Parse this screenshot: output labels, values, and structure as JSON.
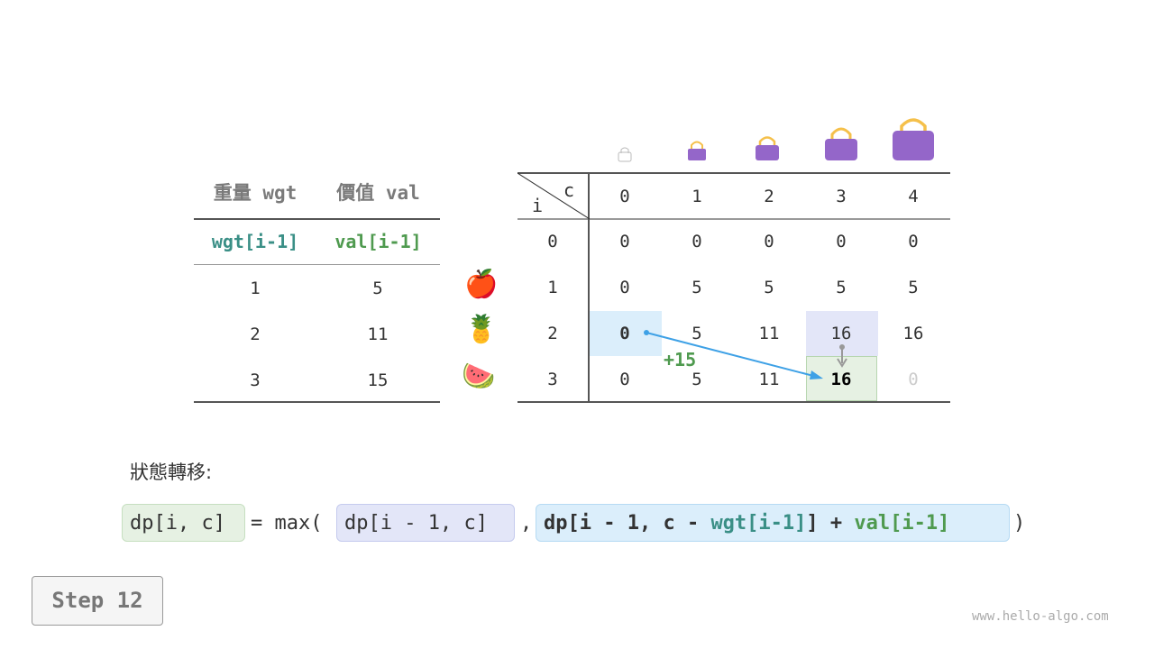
{
  "left_table": {
    "headers": [
      "重量 wgt",
      "價值 val"
    ],
    "subheaders": [
      "wgt[i-1]",
      "val[i-1]"
    ],
    "rows": [
      [
        "1",
        "5"
      ],
      [
        "2",
        "11"
      ],
      [
        "3",
        "15"
      ]
    ]
  },
  "items": [
    {
      "icon": "apple-icon",
      "glyph": "🍎"
    },
    {
      "icon": "pineapple-icon",
      "glyph": "🍍"
    },
    {
      "icon": "watermelon-icon",
      "glyph": "🍉"
    }
  ],
  "dp_table": {
    "corner_i": "i",
    "corner_c": "c",
    "col_headers": [
      "0",
      "1",
      "2",
      "3",
      "4"
    ],
    "row_headers": [
      "0",
      "1",
      "2",
      "3"
    ],
    "rows": [
      [
        "0",
        "0",
        "0",
        "0",
        "0"
      ],
      [
        "0",
        "5",
        "5",
        "5",
        "5"
      ],
      [
        "0",
        "5",
        "11",
        "16",
        "16"
      ],
      [
        "0",
        "5",
        "11",
        "16",
        "0"
      ]
    ],
    "annotation": "+15"
  },
  "colors": {
    "teal": "#3a8f86",
    "green": "#4f9a4f",
    "blue_cell": "#dbeefb",
    "purple_cell": "#e3e6f8",
    "green_cell": "#e6f1e3",
    "arrow": "#3ea1e6",
    "bag": "#9466c9",
    "handle": "#f5c04a"
  },
  "formula": {
    "label": "狀態轉移:",
    "lhs": "dp[i, c]",
    "eq": "= max(",
    "opt1": "dp[i - 1, c]",
    "comma": ",",
    "opt2_a": "dp[i - 1, c - ",
    "opt2_wgt": "wgt[i-1]",
    "opt2_b": "] + ",
    "opt2_val": "val[i-1]",
    "close": ")"
  },
  "step_button": "Step 12",
  "watermark": "www.hello-algo.com"
}
